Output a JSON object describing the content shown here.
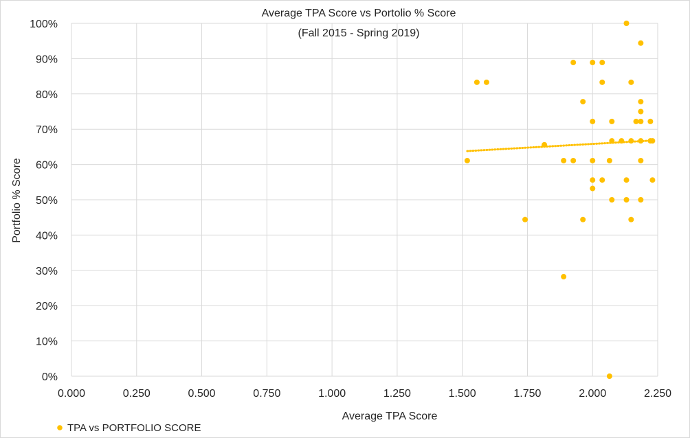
{
  "chart_data": {
    "type": "scatter",
    "title": "Average TPA Score vs Portolio % Score",
    "subtitle": "(Fall 2015 - Spring 2019)",
    "xlabel": "Average TPA Score",
    "ylabel": "Portfolio % Score",
    "xlim": [
      0,
      2.25
    ],
    "ylim": [
      0,
      1
    ],
    "x_ticks": [
      "0.000",
      "0.250",
      "0.500",
      "0.750",
      "1.000",
      "1.250",
      "1.500",
      "1.750",
      "2.000",
      "2.250"
    ],
    "y_ticks": [
      "0%",
      "10%",
      "20%",
      "30%",
      "40%",
      "50%",
      "60%",
      "70%",
      "80%",
      "90%",
      "100%"
    ],
    "grid": true,
    "legend_position": "bottom-left",
    "series": [
      {
        "name": "TPA vs PORTFOLIO SCORE",
        "color": "#FFC000",
        "points": [
          [
            2.13,
            1.0
          ],
          [
            2.185,
            0.944
          ],
          [
            1.926,
            0.889
          ],
          [
            2.0,
            0.889
          ],
          [
            2.037,
            0.889
          ],
          [
            1.556,
            0.833
          ],
          [
            1.593,
            0.833
          ],
          [
            2.037,
            0.833
          ],
          [
            2.148,
            0.833
          ],
          [
            1.963,
            0.778
          ],
          [
            2.185,
            0.778
          ],
          [
            2.185,
            0.75
          ],
          [
            2.0,
            0.722
          ],
          [
            2.074,
            0.722
          ],
          [
            2.167,
            0.722
          ],
          [
            2.185,
            0.722
          ],
          [
            2.222,
            0.722
          ],
          [
            2.074,
            0.667
          ],
          [
            2.111,
            0.667
          ],
          [
            2.148,
            0.667
          ],
          [
            2.185,
            0.667
          ],
          [
            2.222,
            0.667
          ],
          [
            2.23,
            0.667
          ],
          [
            1.815,
            0.656
          ],
          [
            1.519,
            0.611
          ],
          [
            1.889,
            0.611
          ],
          [
            1.926,
            0.611
          ],
          [
            2.0,
            0.611
          ],
          [
            2.065,
            0.611
          ],
          [
            2.185,
            0.611
          ],
          [
            2.0,
            0.556
          ],
          [
            2.037,
            0.556
          ],
          [
            2.13,
            0.556
          ],
          [
            2.23,
            0.556
          ],
          [
            2.0,
            0.532
          ],
          [
            2.074,
            0.5
          ],
          [
            2.13,
            0.5
          ],
          [
            2.185,
            0.5
          ],
          [
            1.741,
            0.444
          ],
          [
            1.963,
            0.444
          ],
          [
            2.148,
            0.444
          ],
          [
            1.889,
            0.282
          ],
          [
            2.065,
            0.0
          ]
        ]
      }
    ],
    "trendline": {
      "style": "dotted",
      "color": "#FFC000",
      "start": [
        1.519,
        0.638
      ],
      "end": [
        2.23,
        0.668
      ]
    }
  }
}
